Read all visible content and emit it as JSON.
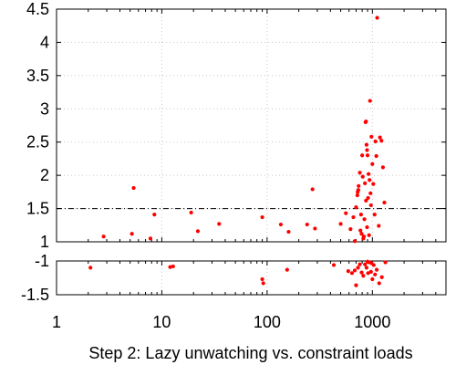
{
  "chart_data": {
    "type": "scatter",
    "title": "",
    "xlabel": "Step 2: Lazy unwatching vs. constraint loads",
    "ylabel": "",
    "xscale": "log",
    "xlim": [
      1,
      5000
    ],
    "grid": true,
    "legend": "none",
    "colors": {
      "points": "#ff0000",
      "ref_line_1_5": "#000000",
      "ref_line_pm1": "#0000aa"
    },
    "x_ticks": [
      "1",
      "10",
      "100",
      "1000"
    ],
    "panels": [
      {
        "name": "upper",
        "ylim": [
          1,
          4.5
        ],
        "y_ticks": [
          "1",
          "1.5",
          "2",
          "2.5",
          "3",
          "3.5",
          "4",
          "4.5"
        ],
        "reference_lines": [
          1.5,
          1
        ],
        "points": [
          [
            2.8,
            1.08
          ],
          [
            5.2,
            1.12
          ],
          [
            5.4,
            1.81
          ],
          [
            7.8,
            1.05
          ],
          [
            8.5,
            1.41
          ],
          [
            19,
            1.44
          ],
          [
            22,
            1.16
          ],
          [
            35,
            1.27
          ],
          [
            90,
            1.37
          ],
          [
            135,
            1.26
          ],
          [
            160,
            1.15
          ],
          [
            240,
            1.26
          ],
          [
            270,
            1.79
          ],
          [
            285,
            1.2
          ],
          [
            500,
            1.27
          ],
          [
            560,
            1.43
          ],
          [
            620,
            1.19
          ],
          [
            660,
            1.37
          ],
          [
            680,
            1.01
          ],
          [
            700,
            1.52
          ],
          [
            720,
            1.7
          ],
          [
            725,
            1.75
          ],
          [
            735,
            1.78
          ],
          [
            740,
            1.84
          ],
          [
            760,
            2.04
          ],
          [
            770,
            1.17
          ],
          [
            780,
            1.41
          ],
          [
            790,
            1.12
          ],
          [
            800,
            2.3
          ],
          [
            810,
            1.98
          ],
          [
            820,
            1.05
          ],
          [
            830,
            1.08
          ],
          [
            840,
            1.34
          ],
          [
            850,
            1.88
          ],
          [
            860,
            2.8
          ],
          [
            870,
            1.62
          ],
          [
            880,
            2.46
          ],
          [
            890,
            1.22
          ],
          [
            900,
            2.3
          ],
          [
            910,
            1.66
          ],
          [
            920,
            2.02
          ],
          [
            930,
            1.1
          ],
          [
            940,
            1.93
          ],
          [
            950,
            3.12
          ],
          [
            960,
            1.73
          ],
          [
            970,
            1.55
          ],
          [
            980,
            2.58
          ],
          [
            1000,
            2.17
          ],
          [
            1020,
            1.87
          ],
          [
            1050,
            1.41
          ],
          [
            1070,
            2.51
          ],
          [
            1090,
            2.29
          ],
          [
            1110,
            4.37
          ],
          [
            1150,
            1.24
          ],
          [
            1180,
            2.57
          ],
          [
            1220,
            2.52
          ],
          [
            1260,
            2.12
          ],
          [
            1300,
            1.59
          ],
          [
            870,
            2.81
          ],
          [
            890,
            2.38
          ]
        ]
      },
      {
        "name": "lower",
        "ylim": [
          -1.5,
          -1
        ],
        "y_ticks": [
          "-1",
          "-1.5"
        ],
        "reference_lines": [
          -1
        ],
        "points": [
          [
            2.1,
            -1.1
          ],
          [
            12,
            -1.09
          ],
          [
            12.8,
            -1.08
          ],
          [
            90,
            -1.27
          ],
          [
            92,
            -1.33
          ],
          [
            155,
            -1.13
          ],
          [
            430,
            -1.06
          ],
          [
            590,
            -1.15
          ],
          [
            640,
            -1.18
          ],
          [
            680,
            -1.14
          ],
          [
            700,
            -1.36
          ],
          [
            730,
            -1.1
          ],
          [
            760,
            -1.05
          ],
          [
            790,
            -1.17
          ],
          [
            820,
            -1.22
          ],
          [
            850,
            -1.05
          ],
          [
            880,
            -1.1
          ],
          [
            910,
            -1.18
          ],
          [
            940,
            -1.02
          ],
          [
            970,
            -1.16
          ],
          [
            1000,
            -1.27
          ],
          [
            1030,
            -1.06
          ],
          [
            1060,
            -1.2
          ],
          [
            1100,
            -1.13
          ],
          [
            1160,
            -1.33
          ],
          [
            1230,
            -1.24
          ],
          [
            1330,
            -1.02
          ],
          [
            900,
            -1.01
          ],
          [
            980,
            -1.03
          ]
        ]
      }
    ]
  }
}
